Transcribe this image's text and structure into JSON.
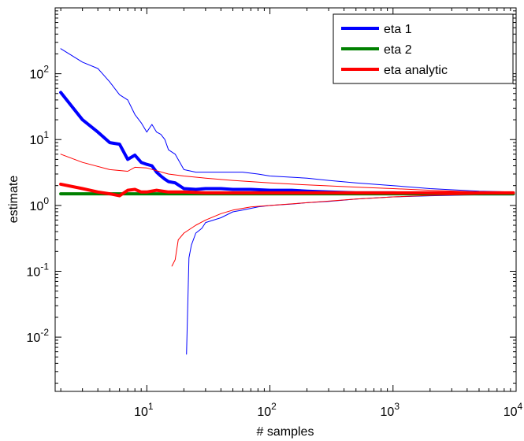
{
  "chart_data": {
    "type": "line",
    "title": "",
    "xlabel": "# samples",
    "ylabel": "estimate",
    "xscale": "log",
    "yscale": "log",
    "xlim": [
      1.8,
      10000
    ],
    "ylim": [
      0.0015,
      1000
    ],
    "grid": false,
    "legend_position": "top-right",
    "x_ticks": [
      {
        "value": 10,
        "base": "10",
        "exp": "1"
      },
      {
        "value": 100,
        "base": "10",
        "exp": "2"
      },
      {
        "value": 1000,
        "base": "10",
        "exp": "3"
      },
      {
        "value": 10000,
        "base": "10",
        "exp": "4"
      }
    ],
    "y_ticks": [
      {
        "value": 0.01,
        "base": "10",
        "exp": "-2"
      },
      {
        "value": 0.1,
        "base": "10",
        "exp": "-1"
      },
      {
        "value": 1,
        "base": "10",
        "exp": "0"
      },
      {
        "value": 10,
        "base": "10",
        "exp": "1"
      },
      {
        "value": 100,
        "base": "10",
        "exp": "2"
      }
    ],
    "legend": [
      {
        "label": "eta 1",
        "color": "#0000ff"
      },
      {
        "label": "eta 2",
        "color": "#008000"
      },
      {
        "label": "eta analytic",
        "color": "#ff0000"
      }
    ],
    "series": [
      {
        "name": "eta 1",
        "color": "#0000ff",
        "role": "estimate",
        "points": [
          [
            2,
            52
          ],
          [
            3,
            20
          ],
          [
            4,
            13
          ],
          [
            5,
            9
          ],
          [
            6,
            8.5
          ],
          [
            7,
            5
          ],
          [
            8,
            5.8
          ],
          [
            9,
            4.5
          ],
          [
            10,
            4.2
          ],
          [
            11,
            4
          ],
          [
            12,
            3.2
          ],
          [
            13,
            2.8
          ],
          [
            14,
            2.5
          ],
          [
            15,
            2.3
          ],
          [
            17,
            2.2
          ],
          [
            20,
            1.8
          ],
          [
            25,
            1.75
          ],
          [
            30,
            1.8
          ],
          [
            40,
            1.8
          ],
          [
            50,
            1.75
          ],
          [
            70,
            1.75
          ],
          [
            100,
            1.7
          ],
          [
            150,
            1.7
          ],
          [
            200,
            1.65
          ],
          [
            300,
            1.6
          ],
          [
            500,
            1.55
          ],
          [
            1000,
            1.55
          ],
          [
            2000,
            1.52
          ],
          [
            5000,
            1.5
          ],
          [
            9500,
            1.5
          ]
        ]
      },
      {
        "name": "eta 1",
        "color": "#0000ff",
        "role": "upper bound",
        "points": [
          [
            2,
            240
          ],
          [
            3,
            150
          ],
          [
            4,
            120
          ],
          [
            5,
            75
          ],
          [
            6,
            48
          ],
          [
            7,
            40
          ],
          [
            8,
            24
          ],
          [
            9,
            18
          ],
          [
            10,
            13
          ],
          [
            11,
            17
          ],
          [
            12,
            13
          ],
          [
            13,
            12
          ],
          [
            14,
            10
          ],
          [
            15,
            7
          ],
          [
            17,
            6
          ],
          [
            20,
            3.5
          ],
          [
            25,
            3.2
          ],
          [
            40,
            3.2
          ],
          [
            60,
            3.2
          ],
          [
            80,
            3
          ],
          [
            100,
            2.8
          ],
          [
            200,
            2.6
          ],
          [
            300,
            2.4
          ],
          [
            500,
            2.2
          ],
          [
            1000,
            2
          ],
          [
            2000,
            1.8
          ],
          [
            5000,
            1.65
          ],
          [
            9500,
            1.6
          ]
        ]
      },
      {
        "name": "eta 1",
        "color": "#0000ff",
        "role": "lower bound",
        "points": [
          [
            21,
            0.0055
          ],
          [
            22,
            0.16
          ],
          [
            23,
            0.25
          ],
          [
            25,
            0.38
          ],
          [
            28,
            0.45
          ],
          [
            30,
            0.55
          ],
          [
            40,
            0.65
          ],
          [
            50,
            0.8
          ],
          [
            60,
            0.85
          ],
          [
            80,
            0.95
          ],
          [
            100,
            1
          ],
          [
            150,
            1.05
          ],
          [
            200,
            1.1
          ],
          [
            300,
            1.15
          ],
          [
            500,
            1.25
          ],
          [
            1000,
            1.35
          ],
          [
            2000,
            1.4
          ],
          [
            5000,
            1.45
          ],
          [
            9500,
            1.5
          ]
        ]
      },
      {
        "name": "eta 2",
        "color": "#008000",
        "role": "estimate",
        "points": [
          [
            2,
            1.5
          ],
          [
            9500,
            1.5
          ]
        ]
      },
      {
        "name": "eta analytic",
        "color": "#ff0000",
        "role": "estimate",
        "points": [
          [
            2,
            2.1
          ],
          [
            3,
            1.8
          ],
          [
            4,
            1.6
          ],
          [
            5,
            1.5
          ],
          [
            6,
            1.4
          ],
          [
            7,
            1.7
          ],
          [
            8,
            1.75
          ],
          [
            9,
            1.6
          ],
          [
            10,
            1.6
          ],
          [
            12,
            1.7
          ],
          [
            15,
            1.6
          ],
          [
            20,
            1.6
          ],
          [
            30,
            1.55
          ],
          [
            50,
            1.55
          ],
          [
            100,
            1.55
          ],
          [
            200,
            1.55
          ],
          [
            500,
            1.55
          ],
          [
            1000,
            1.55
          ],
          [
            5000,
            1.55
          ],
          [
            9500,
            1.55
          ]
        ]
      },
      {
        "name": "eta analytic",
        "color": "#ff0000",
        "role": "upper bound",
        "points": [
          [
            2,
            6
          ],
          [
            3,
            4.5
          ],
          [
            5,
            3.5
          ],
          [
            7,
            3.3
          ],
          [
            8,
            3.8
          ],
          [
            10,
            3.7
          ],
          [
            15,
            3
          ],
          [
            20,
            2.8
          ],
          [
            30,
            2.6
          ],
          [
            50,
            2.4
          ],
          [
            100,
            2.2
          ],
          [
            200,
            2.05
          ],
          [
            500,
            1.9
          ],
          [
            1000,
            1.8
          ],
          [
            2000,
            1.7
          ],
          [
            5000,
            1.6
          ],
          [
            9500,
            1.6
          ]
        ]
      },
      {
        "name": "eta analytic",
        "color": "#ff0000",
        "role": "lower bound",
        "points": [
          [
            16,
            0.12
          ],
          [
            17,
            0.15
          ],
          [
            18,
            0.3
          ],
          [
            20,
            0.38
          ],
          [
            25,
            0.5
          ],
          [
            30,
            0.6
          ],
          [
            40,
            0.75
          ],
          [
            50,
            0.85
          ],
          [
            70,
            0.95
          ],
          [
            100,
            1
          ],
          [
            200,
            1.1
          ],
          [
            500,
            1.25
          ],
          [
            1000,
            1.35
          ],
          [
            2000,
            1.42
          ],
          [
            5000,
            1.48
          ],
          [
            9500,
            1.5
          ]
        ]
      }
    ]
  }
}
